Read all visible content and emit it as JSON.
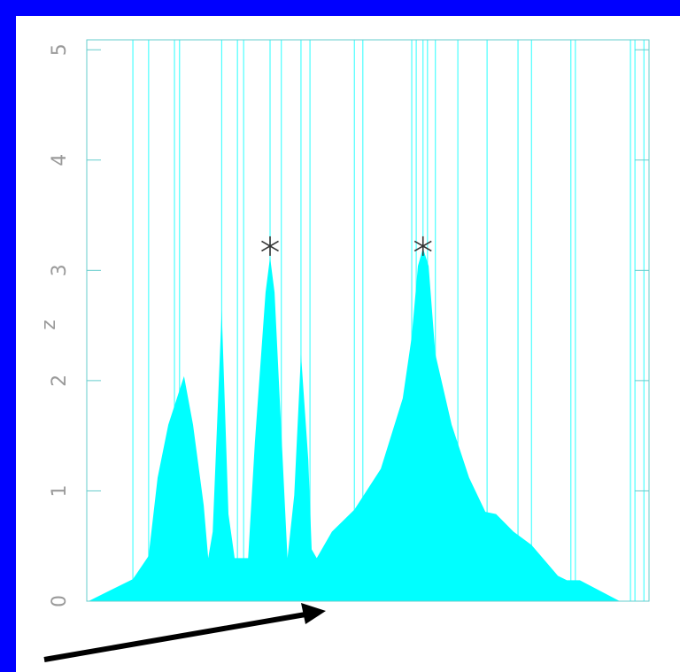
{
  "chart_data": {
    "type": "area",
    "y_label": "z",
    "color": "#00ffff",
    "x": [
      0.3,
      8.2,
      11.0,
      12.6,
      14.5,
      17.3,
      18.9,
      20.8,
      21.6,
      22.4,
      24.0,
      25.2,
      26.3,
      28.7,
      29.9,
      31.8,
      32.6,
      33.4,
      35.0,
      35.7,
      36.9,
      38.1,
      39.4,
      40.0,
      40.9,
      43.6,
      47.6,
      52.3,
      56.2,
      57.8,
      58.9,
      59.8,
      60.8,
      62.0,
      64.9,
      68.0,
      70.9,
      72.8,
      75.9,
      79.1,
      83.8,
      85.4,
      87.7,
      94.8
    ],
    "values": [
      0,
      0.2,
      0.41,
      1.12,
      1.6,
      2.04,
      1.6,
      0.87,
      0.39,
      0.63,
      2.64,
      0.79,
      0.39,
      0.39,
      1.44,
      2.8,
      3.12,
      2.8,
      1.12,
      0.39,
      0.96,
      2.24,
      1.28,
      0.47,
      0.39,
      0.63,
      0.83,
      1.2,
      1.84,
      2.4,
      3.04,
      3.2,
      3.04,
      2.24,
      1.6,
      1.12,
      0.81,
      0.79,
      0.63,
      0.51,
      0.23,
      0.19,
      0.19,
      0
    ],
    "spikes_x": [
      8.2,
      11.0,
      15.6,
      16.5,
      24.0,
      26.8,
      27.9,
      32.6,
      34.6,
      38.1,
      39.7,
      47.6,
      49.1,
      57.8,
      58.6,
      59.8,
      60.6,
      62.0,
      66.0,
      71.2,
      76.7,
      79.1,
      86.1,
      86.9,
      96.7,
      97.5,
      99.1
    ],
    "markers": {
      "x": [
        32.6,
        59.8
      ],
      "y": [
        3.22,
        3.22
      ]
    },
    "xlim": [
      0,
      100
    ],
    "ylim": [
      0,
      5.09
    ],
    "yticks": [
      0,
      1,
      2,
      3,
      4,
      5
    ]
  }
}
